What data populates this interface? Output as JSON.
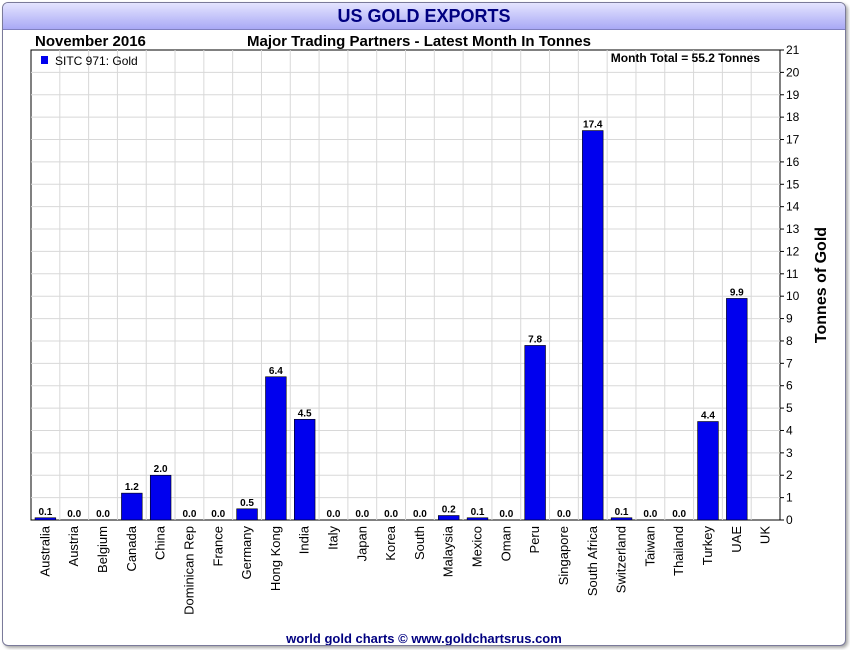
{
  "header": {
    "title": "US GOLD EXPORTS",
    "date": "November 2016",
    "subtitle": "Major Trading Partners - Latest Month In Tonnes"
  },
  "footer": {
    "credit": "world gold charts © www.goldchartsrus.com"
  },
  "colors": {
    "bar": "#0000ee",
    "grid": "#d8d8d8",
    "title_bg": "#a9a9f5",
    "title_text": "#000080"
  },
  "chart_data": {
    "type": "bar",
    "title": "US GOLD EXPORTS",
    "subtitle": "Major Trading Partners - Latest Month In Tonnes",
    "xlabel": "",
    "ylabel": "Tonnes of Gold",
    "ylim": [
      0,
      21
    ],
    "ytick_step": 1,
    "grid": true,
    "legend": {
      "label": "SITC 971: Gold",
      "position": "top-left"
    },
    "annotation": "Month Total = 55.2 Tonnes",
    "categories": [
      "Australia",
      "Austria",
      "Belgium",
      "Canada",
      "China",
      "Dominican Rep",
      "France",
      "Germany",
      "Hong Kong",
      "India",
      "Italy",
      "Japan",
      "Korea",
      "South",
      "Malaysia",
      "Mexico",
      "Oman",
      "Peru",
      "Singapore",
      "South Africa",
      "Switzerland",
      "Taiwan",
      "Thailand",
      "Turkey",
      "UAE",
      "UK"
    ],
    "values": [
      0.1,
      0.0,
      0.0,
      1.2,
      2.0,
      0.0,
      0.0,
      0.5,
      6.4,
      4.5,
      0.0,
      0.0,
      0.0,
      0.0,
      0.2,
      0.1,
      0.0,
      7.8,
      0.0,
      17.4,
      0.1,
      0.0,
      0.0,
      4.4,
      9.9,
      null
    ],
    "value_labels": [
      "0.1",
      "0.0",
      "0.0",
      "1.2",
      "2.0",
      "0.0",
      "0.0",
      "0.5",
      "6.4",
      "4.5",
      "0.0",
      "0.0",
      "0.0",
      "0.0",
      "0.2",
      "0.1",
      "0.0",
      "7.8",
      "0.0",
      "17.4",
      "0.1",
      "0.0",
      "0.0",
      "4.4",
      "9.9",
      ""
    ]
  }
}
